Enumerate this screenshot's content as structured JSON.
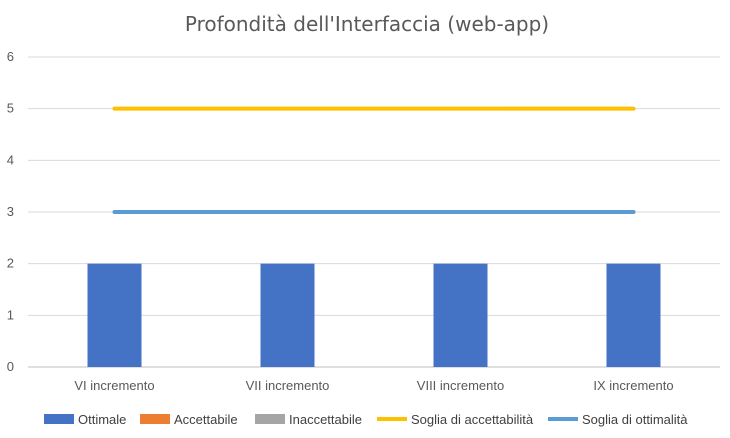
{
  "chart_data": {
    "type": "bar",
    "title": "Profondità dell'Interfaccia (web-app)",
    "categories": [
      "VI incremento",
      "VII incremento",
      "VIII incremento",
      "IX incremento"
    ],
    "ylim": [
      0,
      6
    ],
    "yticks": [
      0,
      1,
      2,
      3,
      4,
      5,
      6
    ],
    "grid": true,
    "legend_position": "bottom",
    "series": [
      {
        "name": "Ottimale",
        "type": "bar",
        "color": "#4472C4",
        "values": [
          2,
          2,
          2,
          2
        ]
      },
      {
        "name": "Accettabile",
        "type": "bar",
        "color": "#ED7D31",
        "values": [
          0,
          0,
          0,
          0
        ]
      },
      {
        "name": "Inaccettabile",
        "type": "bar",
        "color": "#A5A5A5",
        "values": [
          0,
          0,
          0,
          0
        ]
      },
      {
        "name": "Soglia di accettabilità",
        "type": "line",
        "color": "#FFC000",
        "values": [
          5,
          5,
          5,
          5
        ]
      },
      {
        "name": "Soglia di ottimalità",
        "type": "line",
        "color": "#5B9BD5",
        "values": [
          3,
          3,
          3,
          3
        ]
      }
    ]
  }
}
